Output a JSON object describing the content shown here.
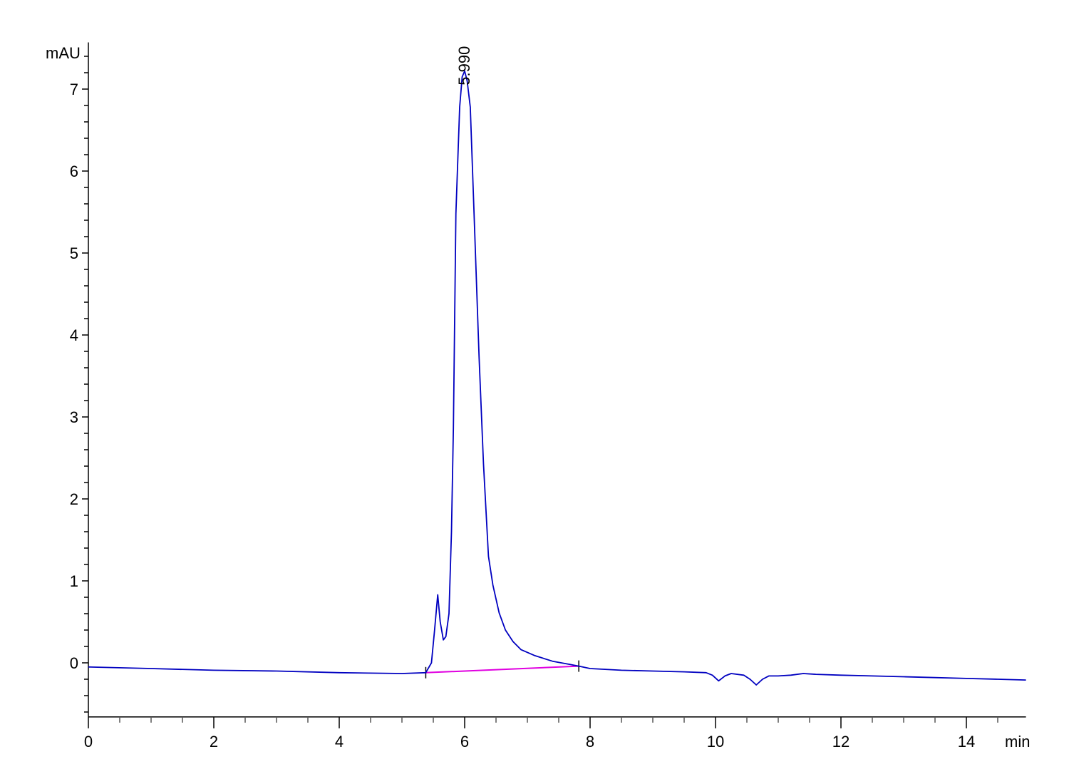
{
  "chart_data": {
    "type": "line",
    "title": "",
    "xlabel": "min",
    "ylabel": "mAU",
    "xlim": [
      0,
      14.95
    ],
    "ylim": [
      -0.66,
      7.57
    ],
    "x_ticks": [
      0,
      2,
      4,
      6,
      8,
      10,
      12,
      14
    ],
    "x_tick_labels": [
      "0",
      "2",
      "4",
      "6",
      "8",
      "10",
      "12",
      "14"
    ],
    "x_minor_step": 0.5,
    "y_ticks": [
      0,
      1,
      2,
      3,
      4,
      5,
      6,
      7
    ],
    "y_tick_labels": [
      "0",
      "1",
      "2",
      "3",
      "4",
      "5",
      "6",
      "7"
    ],
    "y_minor_step": 0.2,
    "grid": false,
    "colors": {
      "trace": "#0000c0",
      "baseline": "#e000e0",
      "axis": "#000000"
    },
    "series": [
      {
        "x": [
          0,
          1,
          2,
          3,
          4,
          5,
          5.38,
          5.47,
          5.52,
          5.57,
          5.61,
          5.66,
          5.7,
          5.75,
          5.79,
          5.82,
          5.86,
          5.92,
          5.96,
          6.0,
          6.04,
          6.09,
          6.15,
          6.23,
          6.3,
          6.38,
          6.45,
          6.55,
          6.65,
          6.77,
          6.9,
          7.11,
          7.4,
          7.68,
          7.82,
          8.0,
          8.5,
          9.0,
          9.5,
          9.85,
          9.95,
          10.05,
          10.15,
          10.25,
          10.45,
          10.55,
          10.65,
          10.75,
          10.85,
          11.0,
          11.2,
          11.4,
          11.6,
          12.0,
          12.5,
          13.0,
          13.5,
          14.0,
          14.5,
          14.95
        ],
        "y": [
          -0.05,
          -0.07,
          -0.09,
          -0.1,
          -0.12,
          -0.13,
          -0.12,
          0.0,
          0.4,
          0.83,
          0.5,
          0.28,
          0.32,
          0.6,
          1.6,
          2.87,
          5.48,
          6.78,
          7.15,
          7.22,
          7.1,
          6.78,
          5.48,
          3.74,
          2.43,
          1.3,
          0.95,
          0.61,
          0.4,
          0.26,
          0.16,
          0.09,
          0.02,
          -0.02,
          -0.04,
          -0.07,
          -0.09,
          -0.1,
          -0.11,
          -0.12,
          -0.15,
          -0.22,
          -0.16,
          -0.13,
          -0.15,
          -0.2,
          -0.27,
          -0.2,
          -0.16,
          -0.16,
          -0.15,
          -0.13,
          -0.14,
          -0.15,
          -0.16,
          -0.17,
          -0.18,
          -0.19,
          -0.2,
          -0.21
        ]
      }
    ],
    "baseline": {
      "x": [
        5.38,
        7.82
      ],
      "y": [
        -0.12,
        -0.04
      ]
    },
    "annotations": [
      {
        "x": 5.99,
        "y": 7.22,
        "text": "5.990"
      }
    ]
  }
}
